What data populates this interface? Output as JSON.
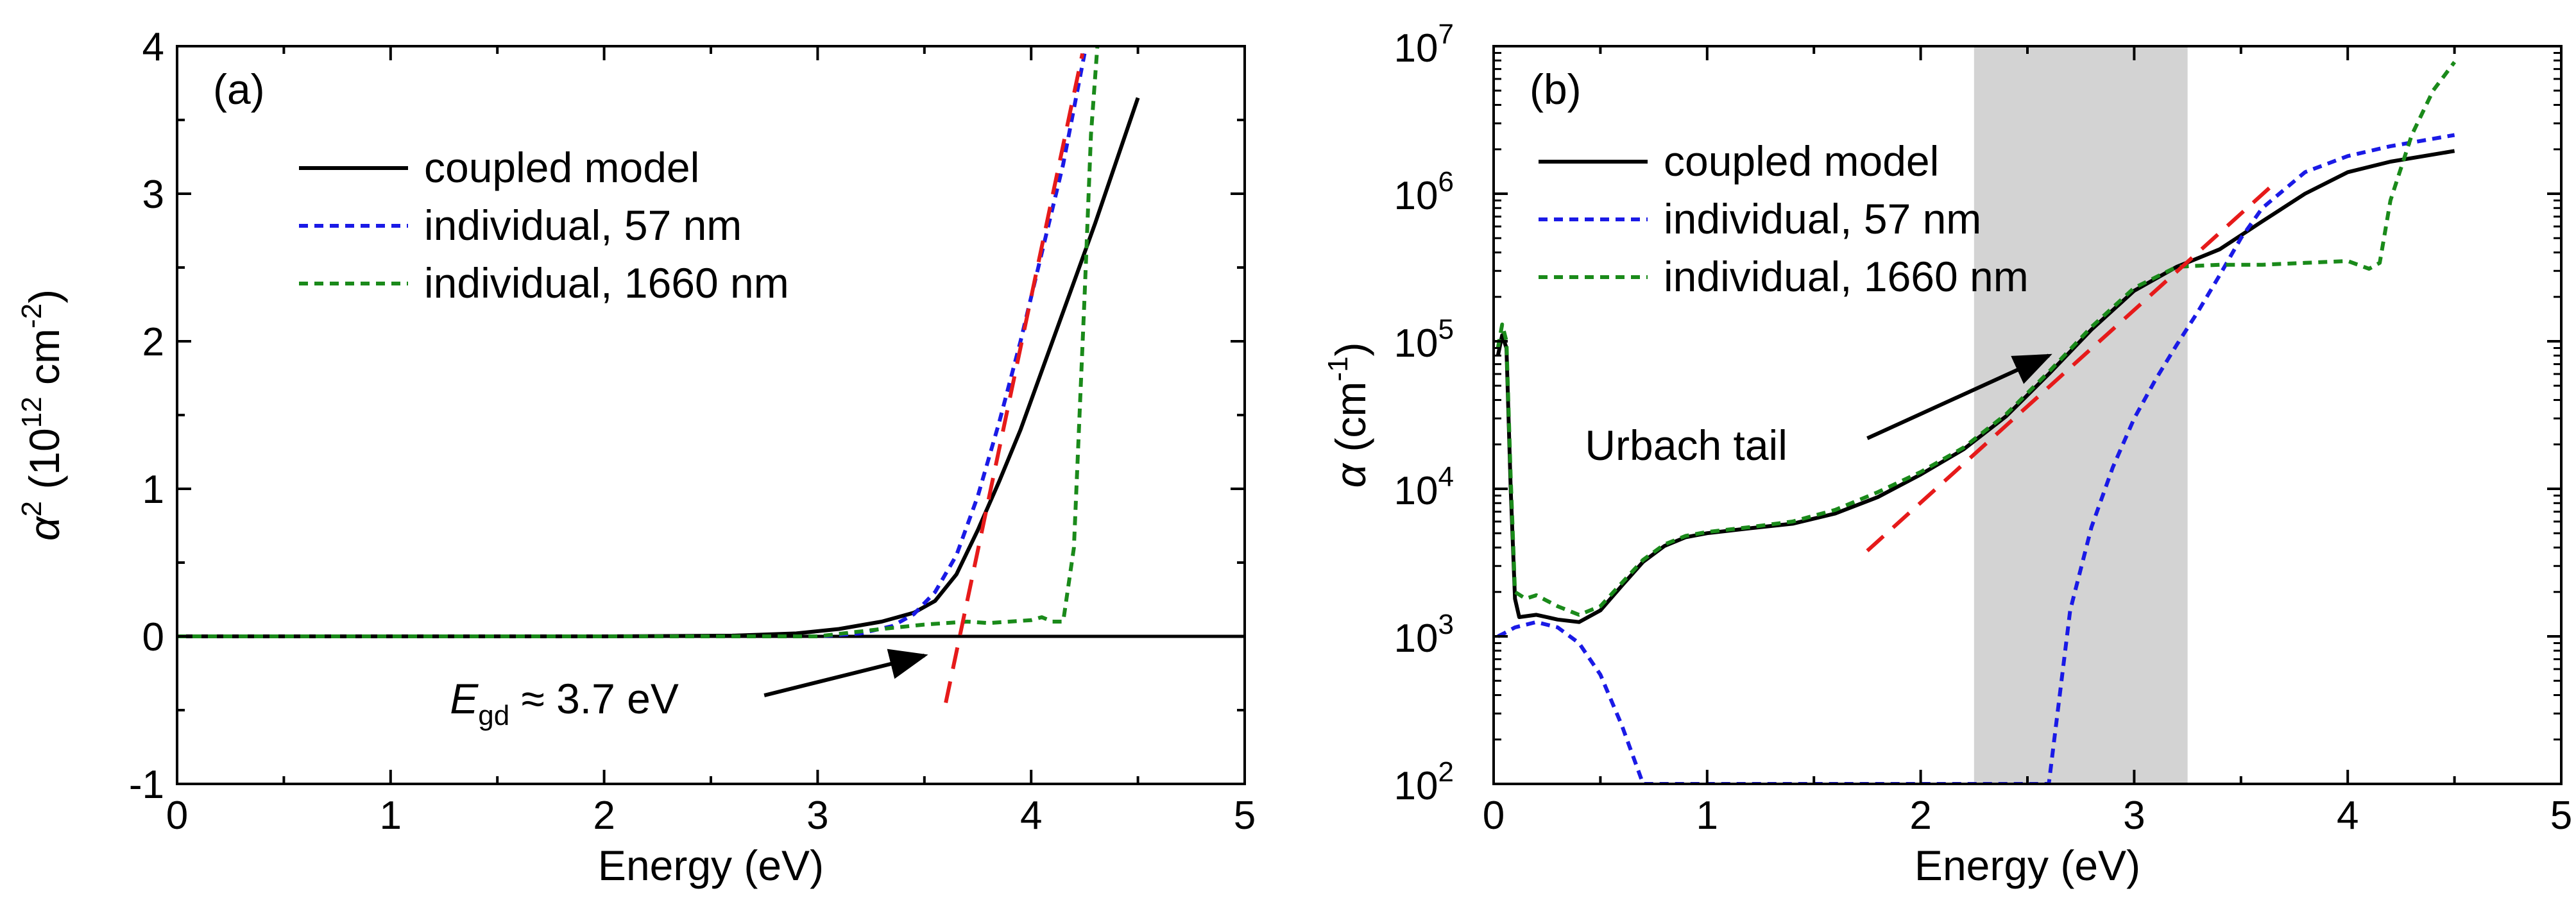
{
  "chart_data": [
    {
      "panel_label": "(a)",
      "type": "line",
      "xlabel": "Energy (eV)",
      "ylabel": "α² (10¹² cm⁻²)",
      "ylabel_parts": {
        "base": "α",
        "sup": "2",
        "open": " (10",
        "exp1": "12",
        "unit": " cm",
        "exp2": "-2",
        "close": ")"
      },
      "xlim": [
        0,
        5
      ],
      "ylim": [
        -1,
        4
      ],
      "x_ticks": [
        "0",
        "1",
        "2",
        "3",
        "4",
        "5"
      ],
      "y_ticks": [
        "-1",
        "0",
        "1",
        "2",
        "3",
        "4"
      ],
      "grid": false,
      "legend_position": "top-left",
      "series": [
        {
          "name": "coupled model",
          "color": "#000000",
          "style": "solid",
          "x": [
            0,
            1,
            2,
            2.6,
            2.9,
            3.1,
            3.3,
            3.45,
            3.55,
            3.65,
            3.75,
            3.85,
            3.95,
            4.05,
            4.15,
            4.3,
            4.5
          ],
          "y": [
            0,
            0,
            0,
            0.005,
            0.02,
            0.05,
            0.1,
            0.16,
            0.24,
            0.42,
            0.72,
            1.05,
            1.4,
            1.8,
            2.2,
            2.8,
            3.65
          ]
        },
        {
          "name": "individual, 57 nm",
          "color": "#1a1ae6",
          "style": "dashed",
          "x": [
            0,
            1,
            2,
            3,
            3.2,
            3.35,
            3.45,
            3.55,
            3.65,
            3.75,
            3.85,
            3.95,
            4.05,
            4.15,
            4.25
          ],
          "y": [
            0,
            0,
            0,
            0,
            0.02,
            0.07,
            0.15,
            0.3,
            0.55,
            0.95,
            1.45,
            2.0,
            2.6,
            3.2,
            3.95
          ]
        },
        {
          "name": "individual, 1660 nm",
          "color": "#1a8a1a",
          "style": "dashed",
          "x": [
            0,
            1,
            2,
            3,
            3.3,
            3.5,
            3.6,
            3.7,
            3.8,
            3.9,
            4.0,
            4.05,
            4.1,
            4.15,
            4.2,
            4.25,
            4.28,
            4.31
          ],
          "y": [
            0,
            0,
            0,
            0,
            0.05,
            0.08,
            0.09,
            0.1,
            0.09,
            0.1,
            0.11,
            0.13,
            0.1,
            0.1,
            0.6,
            2.3,
            3.4,
            4.0
          ]
        },
        {
          "name": "",
          "color": "#e61a1a",
          "style": "long-dash",
          "x": [
            3.6,
            4.24
          ],
          "y": [
            -0.45,
            3.95
          ]
        }
      ],
      "zero_line": 0,
      "annotation": {
        "italic": "E",
        "subscript": "gd",
        "text": " ≈ 3.7 eV",
        "arrow_from": [
          2.75,
          -0.4
        ],
        "arrow_to": [
          3.5,
          -0.13
        ]
      }
    },
    {
      "panel_label": "(b)",
      "type": "line",
      "xlabel": "Energy (eV)",
      "ylabel": "α (cm⁻¹)",
      "ylabel_parts": {
        "base": "α",
        "unit": " (cm",
        "exp": "-1",
        "close": ")"
      },
      "xlim": [
        0,
        5
      ],
      "ylim": [
        100,
        10000000
      ],
      "yscale": "log",
      "x_ticks": [
        "0",
        "1",
        "2",
        "3",
        "4",
        "5"
      ],
      "y_ticks": [
        {
          "base": "10",
          "exp": "2",
          "value": 100
        },
        {
          "base": "10",
          "exp": "3",
          "value": 1000
        },
        {
          "base": "10",
          "exp": "4",
          "value": 10000
        },
        {
          "base": "10",
          "exp": "5",
          "value": 100000
        },
        {
          "base": "10",
          "exp": "6",
          "value": 1000000
        },
        {
          "base": "10",
          "exp": "7",
          "value": 10000000
        }
      ],
      "grid": false,
      "legend_position": "top-left",
      "shaded_region": {
        "x": [
          2.25,
          3.25
        ],
        "color": "#d3d3d3"
      },
      "series": [
        {
          "name": "coupled model",
          "color": "#000000",
          "style": "solid",
          "x": [
            0.02,
            0.04,
            0.06,
            0.08,
            0.1,
            0.12,
            0.2,
            0.3,
            0.4,
            0.5,
            0.6,
            0.7,
            0.8,
            0.9,
            1.0,
            1.2,
            1.4,
            1.6,
            1.8,
            2.0,
            2.2,
            2.4,
            2.6,
            2.8,
            3.0,
            3.2,
            3.4,
            3.6,
            3.8,
            4.0,
            4.2,
            4.5
          ],
          "y": [
            80000,
            110000,
            90000,
            10000,
            1800,
            1350,
            1400,
            1300,
            1250,
            1500,
            2200,
            3200,
            4100,
            4700,
            5000,
            5400,
            5800,
            6800,
            8800,
            12500,
            18500,
            31000,
            60000,
            120000,
            220000,
            320000,
            420000,
            650000,
            1000000,
            1400000,
            1650000,
            1950000
          ]
        },
        {
          "name": "individual, 57 nm",
          "color": "#1a1ae6",
          "style": "dashed",
          "x": [
            0.02,
            0.05,
            0.1,
            0.2,
            0.3,
            0.4,
            0.5,
            0.6,
            0.7,
            2.6,
            2.7,
            2.8,
            2.9,
            3.0,
            3.1,
            3.2,
            3.3,
            3.4,
            3.5,
            3.6,
            3.8,
            4.0,
            4.2,
            4.5
          ],
          "y": [
            1000,
            1050,
            1150,
            1250,
            1150,
            900,
            550,
            250,
            100,
            100,
            1500,
            5500,
            14000,
            30000,
            55000,
            95000,
            160000,
            280000,
            500000,
            800000,
            1400000,
            1800000,
            2100000,
            2500000
          ]
        },
        {
          "name": "individual, 1660 nm",
          "color": "#1a8a1a",
          "style": "dashed",
          "x": [
            0.02,
            0.04,
            0.06,
            0.08,
            0.1,
            0.15,
            0.2,
            0.3,
            0.4,
            0.5,
            0.6,
            0.7,
            0.8,
            0.9,
            1.0,
            1.2,
            1.4,
            1.6,
            1.8,
            2.0,
            2.2,
            2.4,
            2.6,
            2.8,
            3.0,
            3.2,
            3.4,
            3.6,
            3.8,
            4.0,
            4.1,
            4.15,
            4.2,
            4.3,
            4.4,
            4.5
          ],
          "y": [
            90000,
            130000,
            100000,
            12000,
            2000,
            1800,
            1900,
            1600,
            1400,
            1600,
            2300,
            3300,
            4200,
            4800,
            5100,
            5500,
            6000,
            7200,
            9500,
            13000,
            19000,
            32000,
            62000,
            125000,
            230000,
            320000,
            330000,
            330000,
            340000,
            350000,
            310000,
            340000,
            900000,
            2500000,
            5000000,
            7800000
          ]
        },
        {
          "name": "",
          "color": "#e61a1a",
          "style": "long-dash",
          "x": [
            1.75,
            3.65
          ],
          "y": [
            3800,
            1150000
          ]
        }
      ],
      "annotation": {
        "text": "Urbach tail",
        "arrow_from": [
          1.75,
          22000
        ],
        "arrow_to": [
          2.6,
          80000
        ]
      }
    }
  ]
}
